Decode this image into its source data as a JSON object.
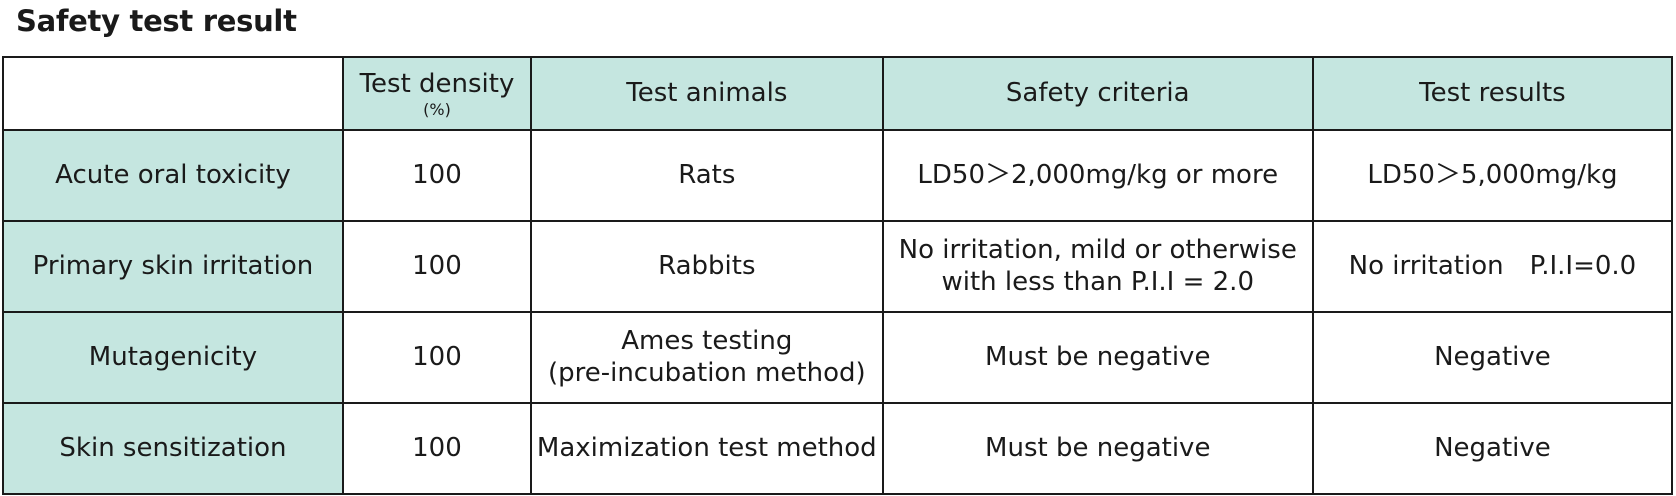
{
  "title": "Safety test result",
  "table": {
    "headers": {
      "density": "Test density",
      "density_unit": "(%)",
      "animals": "Test animals",
      "criteria": "Safety criteria",
      "results": "Test results"
    },
    "rows": [
      {
        "name": "Acute oral toxicity",
        "density": "100",
        "animals": [
          "Rats"
        ],
        "criteria": [
          "LD50＞2,000mg/kg or more"
        ],
        "result": "LD50＞5,000mg/kg"
      },
      {
        "name": "Primary skin irritation",
        "density": "100",
        "animals": [
          "Rabbits"
        ],
        "criteria": [
          "No irritation, mild or otherwise",
          "with less than P.I.I = 2.0"
        ],
        "result": "No irritation　P.I.I=0.0"
      },
      {
        "name": "Mutagenicity",
        "density": "100",
        "animals": [
          "Ames testing",
          "(pre-incubation method)"
        ],
        "criteria": [
          "Must be negative"
        ],
        "result": "Negative"
      },
      {
        "name": "Skin sensitization",
        "density": "100",
        "animals": [
          "Maximization test method"
        ],
        "criteria": [
          "Must be negative"
        ],
        "result": "Negative"
      }
    ]
  }
}
